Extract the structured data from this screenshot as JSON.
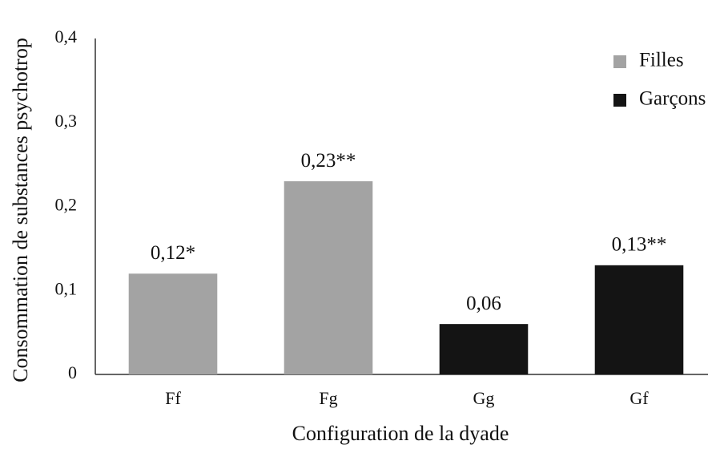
{
  "chart_data": {
    "type": "bar",
    "x_label": "Configuration de la dyade",
    "y_label": "Consommation de substances psychotrop",
    "categories": [
      "Ff",
      "Fg",
      "Gg",
      "Gf"
    ],
    "series": [
      {
        "name": "Filles",
        "color": "#a3a3a3",
        "values": [
          0.12,
          0.23,
          null,
          null
        ],
        "value_labels": [
          "0,12*",
          "0,23**",
          null,
          null
        ]
      },
      {
        "name": "Garçons",
        "color": "#141414",
        "values": [
          null,
          null,
          0.06,
          0.13
        ],
        "value_labels": [
          null,
          null,
          "0,06",
          "0,13**"
        ]
      }
    ],
    "ylim": [
      0,
      0.4
    ],
    "yticks": [
      0,
      {
        "value": 0.1,
        "label": "0,1"
      },
      {
        "value": 0.2,
        "label": "0,2"
      },
      {
        "value": 0.3,
        "label": "0,3"
      },
      {
        "value": 0.4,
        "label": "0,4"
      }
    ],
    "grid": false,
    "legend": "top-right"
  }
}
